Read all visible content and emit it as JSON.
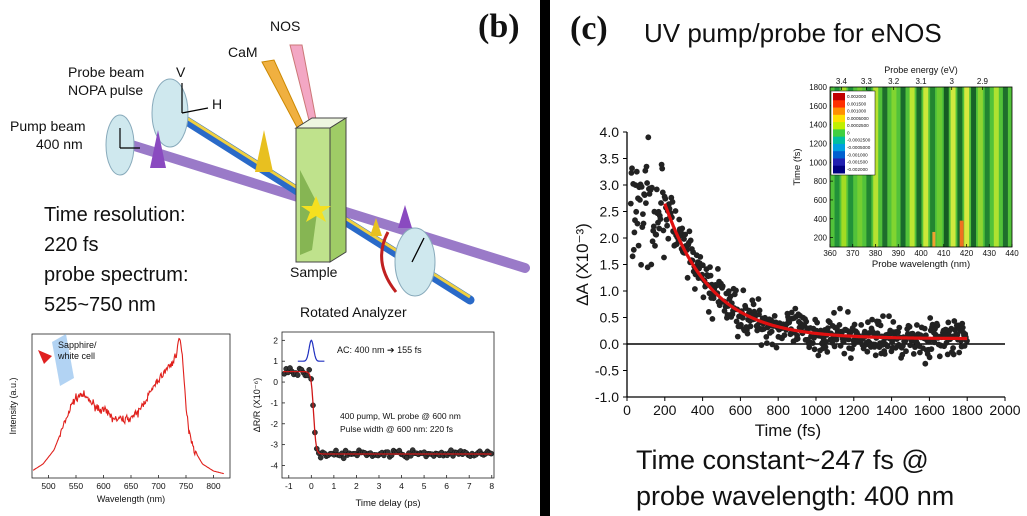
{
  "panel_b": {
    "label": "(b)",
    "setup": {
      "nos": "NOS",
      "cam": "CaM",
      "probe_beam": "Probe beam",
      "nopa_pulse": "NOPA pulse",
      "v": "V",
      "h": "H",
      "pump_beam": "Pump beam",
      "pump_wavelength": "400 nm",
      "sample": "Sample",
      "analyzer": "Rotated Analyzer"
    },
    "specs": [
      "Time resolution:",
      "220 fs",
      "probe spectrum:",
      "525~750 nm"
    ],
    "spectrum_inset": {
      "sapphire_label_1": "Sapphire/",
      "sapphire_label_2": "white cell"
    },
    "trace_inset": {
      "ac_label": "AC: 400 nm ➔ 155 fs",
      "probe_label": "400 pump, WL probe @ 600 nm",
      "width_label": "Pulse width @ 600 nm: 220 fs"
    }
  },
  "panel_c": {
    "label": "(c)",
    "title": "UV pump/probe for eNOS",
    "caption_1": "Time constant~247 fs @",
    "caption_2": "probe wavelength: 400 nm",
    "heatmap_inset": {
      "colorbar": [
        "0.002000",
        "0.001500",
        "0.001000",
        "0.0005000",
        "0.0002500",
        "0",
        "-0.0002500",
        "-0.0005000",
        "-0.001000",
        "-0.001500",
        "-0.002000"
      ]
    }
  },
  "chart_data": [
    {
      "type": "line",
      "title": "",
      "xlabel": "Wavelength (nm)",
      "ylabel": "Intensity (a.u.)",
      "xlim": [
        470,
        830
      ],
      "xticks": [
        500,
        550,
        600,
        650,
        700,
        750,
        800
      ],
      "series": [
        {
          "color": "#e0201c",
          "x": [
            470,
            490,
            510,
            530,
            545,
            560,
            575,
            590,
            605,
            620,
            640,
            660,
            680,
            700,
            715,
            725,
            732,
            737,
            740,
            744,
            748,
            755,
            765,
            780,
            800,
            820
          ],
          "y": [
            0.05,
            0.1,
            0.2,
            0.4,
            0.55,
            0.6,
            0.55,
            0.5,
            0.47,
            0.42,
            0.42,
            0.45,
            0.58,
            0.7,
            0.78,
            0.82,
            0.88,
            1.0,
            0.95,
            0.85,
            0.6,
            0.35,
            0.2,
            0.1,
            0.05,
            0.03
          ]
        }
      ]
    },
    {
      "type": "scatter",
      "title": "",
      "xlabel": "Time delay (ps)",
      "ylabel": "ΔR/R (X10⁻⁶)",
      "xlim": [
        -1.3,
        8.1
      ],
      "ylim": [
        -4.6,
        2.4
      ],
      "xticks": [
        -1,
        0,
        1,
        2,
        3,
        4,
        5,
        6,
        7,
        8
      ],
      "yticks": [
        2,
        1,
        0,
        -1,
        -2,
        -3,
        -4
      ],
      "fit": {
        "color": "#d01818",
        "before": 0.5,
        "after": -3.45,
        "t0": 0.1,
        "width": 0.22
      }
    },
    {
      "type": "scatter",
      "title": "",
      "xlabel": "Time (fs)",
      "ylabel": "ΔA (X10⁻³)",
      "xlim": [
        0,
        2000
      ],
      "ylim": [
        -1.0,
        4.0
      ],
      "xticks": [
        0,
        200,
        400,
        600,
        800,
        1000,
        1200,
        1400,
        1600,
        1800,
        2000
      ],
      "yticks": [
        4.0,
        3.5,
        3.0,
        2.5,
        2.0,
        1.5,
        1.0,
        0.5,
        0.0,
        -0.5,
        -1.0
      ],
      "fit": {
        "color": "#e01010",
        "amplitude": 2.55,
        "tau": 247,
        "offset": 0.1,
        "x_start": 200,
        "x_end": 1800
      }
    },
    {
      "type": "heatmap",
      "title": "",
      "xlabel": "Probe wavelength (nm)",
      "ylabel": "Time (fs)",
      "x2label": "Probe energy (eV)",
      "xlim": [
        360,
        440
      ],
      "ylim": [
        100,
        1800
      ],
      "xticks": [
        360,
        370,
        380,
        390,
        400,
        410,
        420,
        430,
        440
      ],
      "yticks": [
        200,
        400,
        600,
        800,
        1000,
        1200,
        1400,
        1600,
        1800
      ],
      "x2ticks": [
        "3.4",
        "3.3",
        "3.2",
        "3.1",
        "3",
        "2.9"
      ]
    }
  ]
}
